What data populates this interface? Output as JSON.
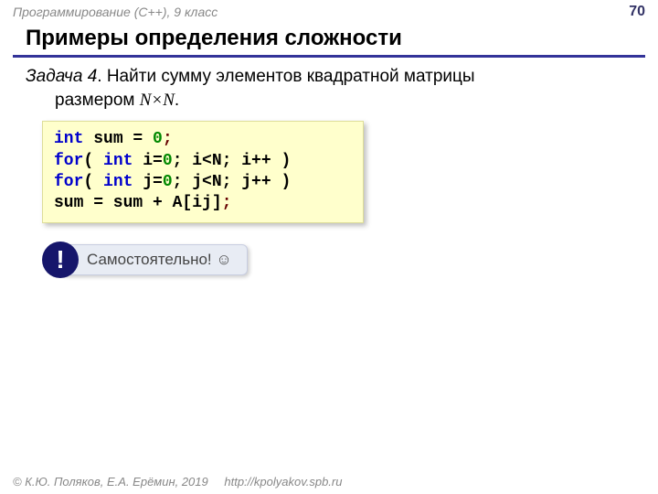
{
  "header": {
    "course_label": "Программирование (C++), 9 класс",
    "page_number": "70"
  },
  "title": "Примеры определения сложности",
  "task": {
    "prefix": "Задача 4",
    "line1_rest": ". Найти сумму элементов квадратной матрицы",
    "line2_prefix": "размером ",
    "nxn": "N×N",
    "line2_suffix": "."
  },
  "code": {
    "lines": [
      {
        "parts": [
          {
            "t": "int",
            "c": "kw"
          },
          {
            "t": " ",
            "c": "ident"
          },
          {
            "t": "sum = ",
            "c": "ident"
          },
          {
            "t": "0",
            "c": "num"
          },
          {
            "t": ";",
            "c": "punct"
          }
        ]
      },
      {
        "parts": [
          {
            "t": "for",
            "c": "kw"
          },
          {
            "t": "( ",
            "c": "ident"
          },
          {
            "t": "int",
            "c": "kw"
          },
          {
            "t": " i=",
            "c": "ident"
          },
          {
            "t": "0",
            "c": "num"
          },
          {
            "t": "; i<N; i++ )",
            "c": "ident"
          }
        ]
      },
      {
        "parts": [
          {
            "t": " ",
            "c": "ident"
          },
          {
            "t": "for",
            "c": "kw"
          },
          {
            "t": "( ",
            "c": "ident"
          },
          {
            "t": "int",
            "c": "kw"
          },
          {
            "t": " j=",
            "c": "ident"
          },
          {
            "t": "0",
            "c": "num"
          },
          {
            "t": "; j<N; j++ )",
            "c": "ident"
          }
        ]
      },
      {
        "parts": [
          {
            "t": "   sum = sum + A[ij]",
            "c": "ident"
          },
          {
            "t": ";",
            "c": "punct"
          }
        ]
      }
    ],
    "background_color": "#ffffcc",
    "keyword_color": "#0000cc",
    "number_color": "#008800",
    "punct_color": "#660000",
    "ident_color": "#000000"
  },
  "note": {
    "badge": "!",
    "text": "Самостоятельно! ☺",
    "badge_bg": "#16166b",
    "pill_bg": "#e8ecf4"
  },
  "footer": {
    "copyright": "© К.Ю. Поляков, Е.А. Ерёмин, 2019",
    "link": "http://kpolyakov.spb.ru"
  },
  "colors": {
    "underline": "#333399",
    "bg": "#ffffff"
  }
}
